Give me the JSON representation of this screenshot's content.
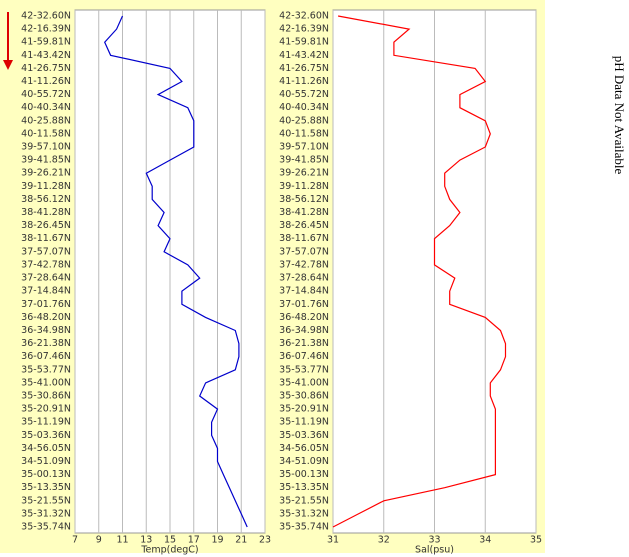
{
  "chart_data": [
    {
      "type": "line",
      "x_label": "Temp(degC)",
      "color": "#0000cc",
      "xlim": [
        7,
        23
      ],
      "xticks": [
        7,
        9,
        11,
        13,
        15,
        17,
        19,
        21,
        23
      ],
      "grid": true,
      "categories": [
        "42-32.60N",
        "42-16.39N",
        "41-59.81N",
        "41-43.42N",
        "41-26.75N",
        "41-11.26N",
        "40-55.72N",
        "40-40.34N",
        "40-25.88N",
        "40-11.58N",
        "39-57.10N",
        "39-41.85N",
        "39-26.21N",
        "39-11.28N",
        "38-56.12N",
        "38-41.28N",
        "38-26.45N",
        "38-11.67N",
        "37-57.07N",
        "37-42.78N",
        "37-28.64N",
        "37-14.84N",
        "37-01.76N",
        "36-48.20N",
        "36-34.98N",
        "36-21.38N",
        "36-07.46N",
        "35-53.77N",
        "35-41.00N",
        "35-30.86N",
        "35-20.91N",
        "35-11.19N",
        "35-03.36N",
        "34-56.05N",
        "34-51.09N",
        "35-00.13N",
        "35-13.35N",
        "35-21.55N",
        "35-31.32N",
        "35-35.74N"
      ],
      "values": [
        11,
        10.5,
        9.5,
        10,
        15,
        16,
        14,
        16.5,
        17,
        17,
        17,
        15,
        13,
        13.5,
        13.5,
        14.5,
        14,
        15,
        14.5,
        16.5,
        17.5,
        16,
        16,
        18,
        20.5,
        20.8,
        20.8,
        20.5,
        18,
        17.5,
        19,
        18.5,
        18.5,
        19,
        19,
        19.5,
        20,
        20.5,
        21,
        21.5
      ]
    },
    {
      "type": "line",
      "x_label": "Sal(psu)",
      "color": "#ff0000",
      "xlim": [
        31,
        35
      ],
      "xticks": [
        31,
        32,
        33,
        34,
        35
      ],
      "grid": true,
      "categories": [
        "42-32.60N",
        "42-16.39N",
        "41-59.81N",
        "41-43.42N",
        "41-26.75N",
        "41-11.26N",
        "40-55.72N",
        "40-40.34N",
        "40-25.88N",
        "40-11.58N",
        "39-57.10N",
        "39-41.85N",
        "39-26.21N",
        "39-11.28N",
        "38-56.12N",
        "38-41.28N",
        "38-26.45N",
        "38-11.67N",
        "37-57.07N",
        "37-42.78N",
        "37-28.64N",
        "37-14.84N",
        "37-01.76N",
        "36-48.20N",
        "36-34.98N",
        "36-21.38N",
        "36-07.46N",
        "35-53.77N",
        "35-41.00N",
        "35-30.86N",
        "35-20.91N",
        "35-11.19N",
        "35-03.36N",
        "34-56.05N",
        "34-51.09N",
        "35-00.13N",
        "35-13.35N",
        "35-21.55N",
        "35-31.32N",
        "35-35.74N"
      ],
      "values": [
        31.1,
        32.5,
        32.2,
        32.2,
        33.8,
        34,
        33.5,
        33.5,
        34,
        34.1,
        34,
        33.5,
        33.2,
        33.2,
        33.3,
        33.5,
        33.3,
        33,
        33,
        33,
        33.4,
        33.3,
        33.3,
        34,
        34.3,
        34.4,
        34.4,
        34.3,
        34.1,
        34.1,
        34.2,
        34.2,
        34.2,
        34.2,
        34.2,
        34.2,
        33.2,
        32,
        31.5,
        31
      ]
    }
  ],
  "annotation": "pH Data Not Available"
}
